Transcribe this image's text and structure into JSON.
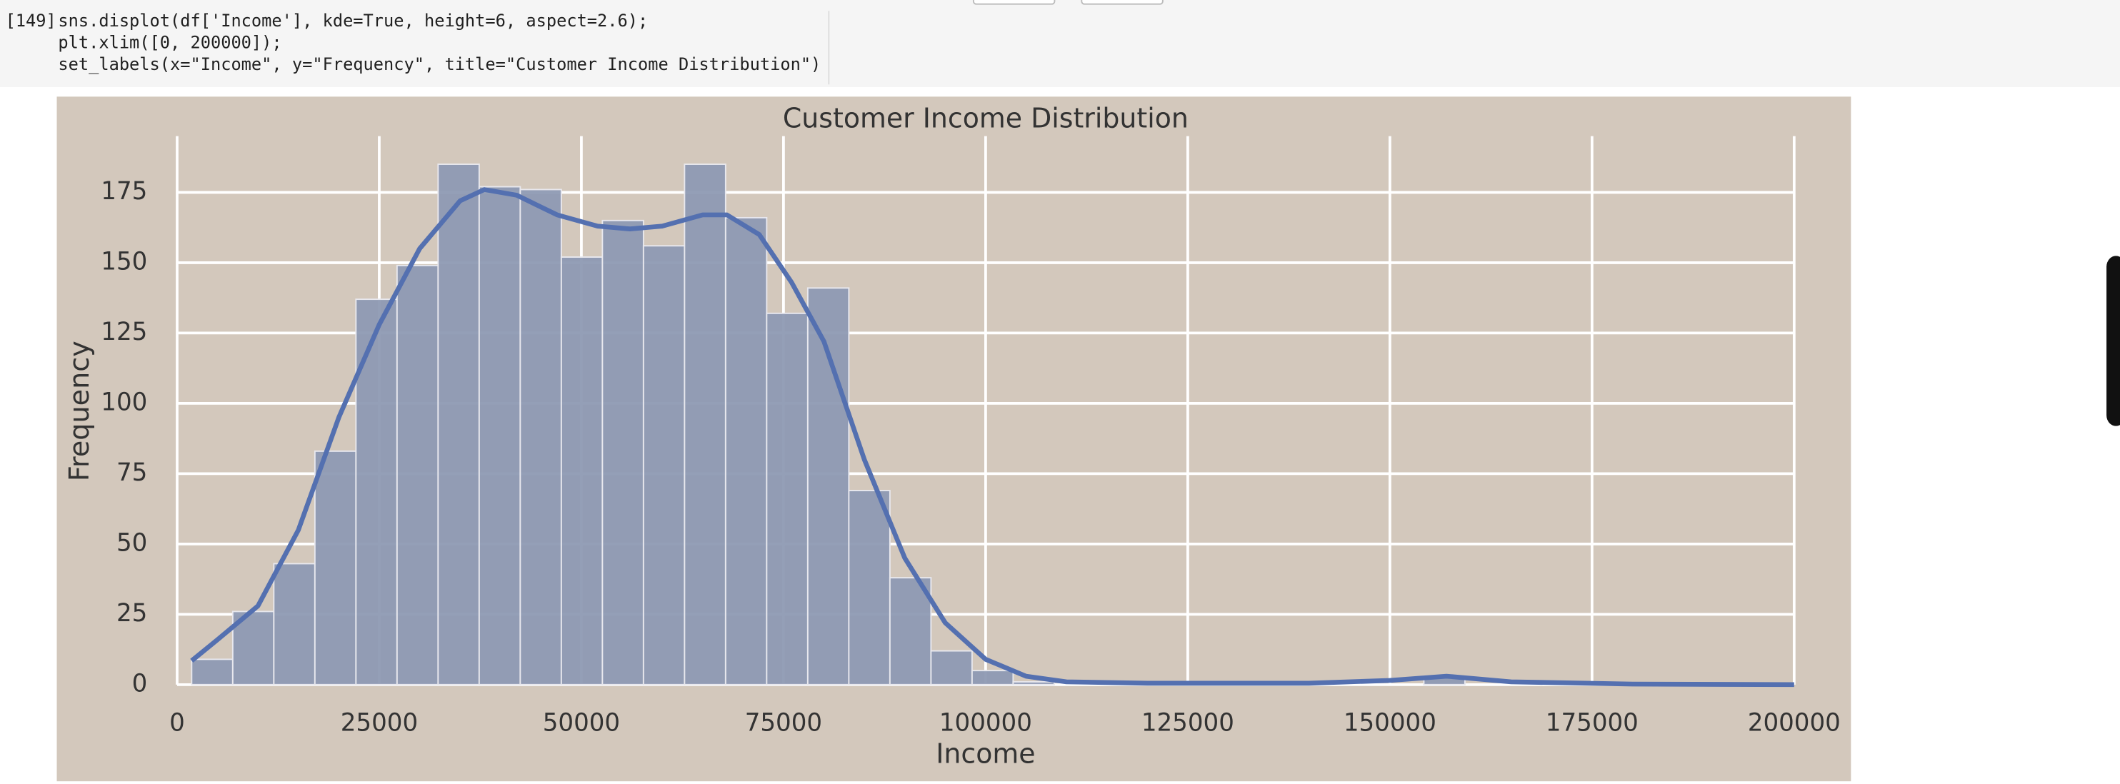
{
  "cell": {
    "prompt": "[149]",
    "code": [
      "sns.displot(df['Income'], kde=True, height=6, aspect=2.6);",
      "plt.xlim([0, 200000]);",
      "set_labels(x=\"Income\", y=\"Frequency\", title=\"Customer Income Distribution\")"
    ]
  },
  "chart_data": {
    "type": "histogram",
    "title": "Customer Income Distribution",
    "x_label": "Income",
    "y_label": "Frequency",
    "bins": [
      1800,
      6880,
      11960,
      17040,
      22120,
      27200,
      32280,
      37360,
      42440,
      47520,
      52600,
      57680,
      62760,
      67840,
      72920,
      78000,
      83080,
      88160,
      93240,
      98320,
      103400,
      108480,
      113560,
      118640,
      123720,
      128800,
      133880,
      138960,
      144040,
      149120,
      154200,
      159280
    ],
    "counts": [
      9,
      26,
      43,
      83,
      137,
      149,
      185,
      177,
      176,
      152,
      165,
      156,
      185,
      166,
      132,
      141,
      69,
      38,
      12,
      5,
      1,
      0,
      0,
      0,
      0,
      0,
      0,
      0,
      0,
      0,
      3
    ],
    "color": "#8e9ab3",
    "kde": {
      "color": "#5470b0",
      "x": [
        1800,
        5000,
        10000,
        15000,
        20000,
        25000,
        30000,
        35000,
        38000,
        42000,
        47000,
        52000,
        56000,
        60000,
        65000,
        68000,
        72000,
        76000,
        80000,
        85000,
        90000,
        95000,
        100000,
        105000,
        110000,
        120000,
        140000,
        150000,
        157000,
        165000,
        180000,
        200000
      ],
      "y": [
        8.5,
        16,
        28,
        55,
        95,
        128,
        155,
        172,
        176,
        174,
        167,
        163,
        162,
        163,
        167,
        167,
        160,
        143,
        122,
        80,
        45,
        22,
        9,
        3,
        1,
        0.5,
        0.5,
        1.5,
        3,
        1,
        0.2,
        0
      ]
    },
    "xlim": [
      0,
      200000
    ],
    "xticks": [
      0,
      25000,
      50000,
      75000,
      100000,
      125000,
      150000,
      175000,
      200000
    ],
    "ylim": [
      0,
      195
    ],
    "yticks": [
      0,
      25,
      50,
      75,
      100,
      125,
      150,
      175
    ],
    "grid": true
  }
}
